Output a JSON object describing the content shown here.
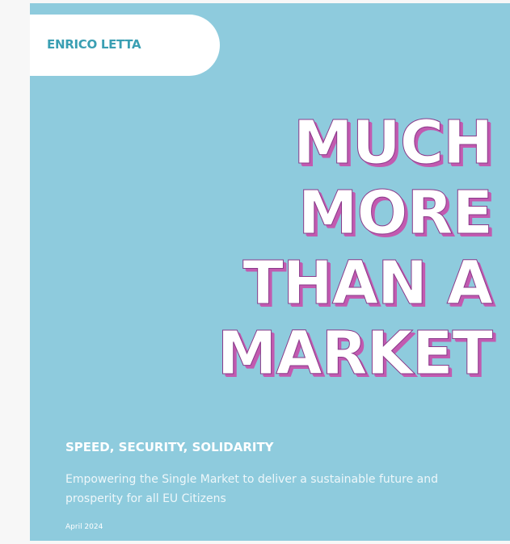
{
  "author": "ENRICO LETTA",
  "title_lines": [
    "MUCH",
    "MORE",
    "THAN A",
    "MARKET"
  ],
  "subtitle": "SPEED, SECURITY, SOLIDARITY",
  "description": "Empowering the Single Market to deliver a sustainable future and prosperity for all EU Citizens",
  "date": "April 2024"
}
